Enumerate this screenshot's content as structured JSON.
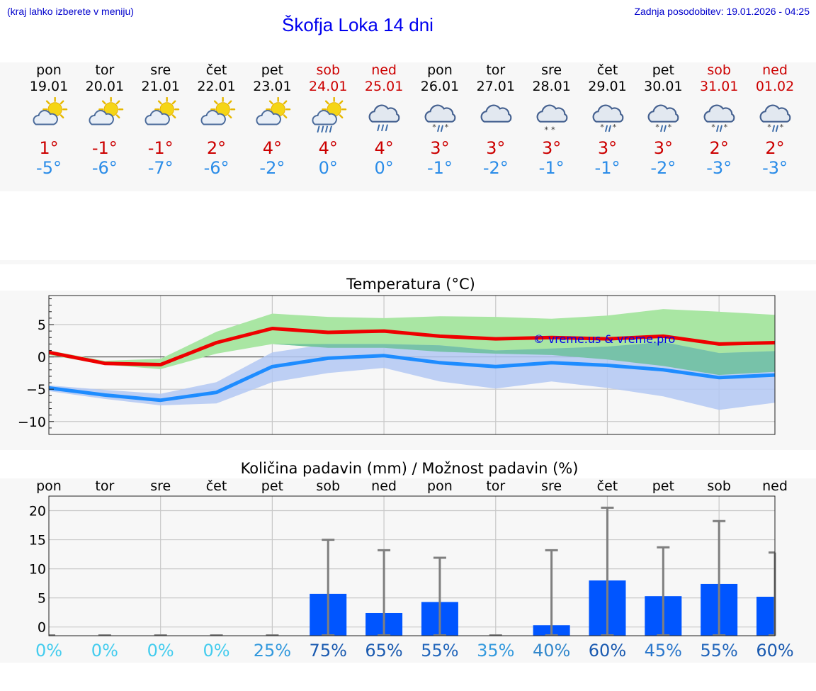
{
  "header": {
    "menu_hint": "(kraj lahko izberete v meniju)",
    "title": "Škofja Loka 14 dni",
    "last_update": "Zadnja posodobitev: 19.01.2026 - 04:25"
  },
  "days": [
    {
      "name": "pon",
      "date": "19.01",
      "weekend": false,
      "icon": "sun-cloud-icon",
      "max": "1°",
      "min": "-5°"
    },
    {
      "name": "tor",
      "date": "20.01",
      "weekend": false,
      "icon": "sun-cloud-icon",
      "max": "-1°",
      "min": "-6°"
    },
    {
      "name": "sre",
      "date": "21.01",
      "weekend": false,
      "icon": "sun-cloud-icon",
      "max": "-1°",
      "min": "-7°"
    },
    {
      "name": "čet",
      "date": "22.01",
      "weekend": false,
      "icon": "sun-cloud-icon",
      "max": "2°",
      "min": "-6°"
    },
    {
      "name": "pet",
      "date": "23.01",
      "weekend": false,
      "icon": "sun-cloud-icon",
      "max": "4°",
      "min": "-2°"
    },
    {
      "name": "sob",
      "date": "24.01",
      "weekend": true,
      "icon": "sun-cloud-rain-icon",
      "max": "4°",
      "min": "0°"
    },
    {
      "name": "ned",
      "date": "25.01",
      "weekend": true,
      "icon": "cloud-rain-icon",
      "max": "4°",
      "min": "0°"
    },
    {
      "name": "pon",
      "date": "26.01",
      "weekend": false,
      "icon": "cloud-sleet-icon",
      "max": "3°",
      "min": "-1°"
    },
    {
      "name": "tor",
      "date": "27.01",
      "weekend": false,
      "icon": "cloud-icon",
      "max": "3°",
      "min": "-2°"
    },
    {
      "name": "sre",
      "date": "28.01",
      "weekend": false,
      "icon": "cloud-snow-icon",
      "max": "3°",
      "min": "-1°"
    },
    {
      "name": "čet",
      "date": "29.01",
      "weekend": false,
      "icon": "cloud-sleet-icon",
      "max": "3°",
      "min": "-1°"
    },
    {
      "name": "pet",
      "date": "30.01",
      "weekend": false,
      "icon": "cloud-sleet-icon",
      "max": "3°",
      "min": "-2°"
    },
    {
      "name": "sob",
      "date": "31.01",
      "weekend": true,
      "icon": "cloud-sleet-icon",
      "max": "2°",
      "min": "-3°"
    },
    {
      "name": "ned",
      "date": "01.02",
      "weekend": true,
      "icon": "cloud-sleet-icon",
      "max": "2°",
      "min": "-3°"
    }
  ],
  "chart_data": [
    {
      "type": "line",
      "title": "Temperatura (°C)",
      "watermark": "© vreme.us & vreme.pro",
      "ylim": [
        -12,
        9.5
      ],
      "yticks": [
        5,
        0,
        -5,
        -10
      ],
      "ytick_labels": [
        "5",
        "0",
        "−5",
        "−10"
      ],
      "x": [
        0,
        1,
        2,
        3,
        4,
        5,
        6,
        7,
        8,
        9,
        10,
        11,
        12,
        13
      ],
      "series": [
        {
          "name": "max",
          "color": "#ee0000",
          "values": [
            0.7,
            -1.0,
            -1.2,
            2.2,
            4.4,
            3.8,
            4.0,
            3.2,
            2.8,
            3.0,
            2.8,
            3.2,
            2.0,
            2.2
          ]
        },
        {
          "name": "min",
          "color": "#1e8cff",
          "values": [
            -4.8,
            -5.9,
            -6.7,
            -5.5,
            -1.5,
            -0.2,
            0.2,
            -0.9,
            -1.5,
            -0.9,
            -1.3,
            -2.0,
            -3.2,
            -2.8
          ]
        }
      ],
      "bands": [
        {
          "name": "max-range",
          "color": "#a9e6a3",
          "low": [
            0.3,
            -1.2,
            -1.9,
            0.5,
            2.0,
            1.4,
            1.4,
            0.8,
            0.5,
            0.3,
            -0.4,
            -1.4,
            -2.8,
            -2.3
          ],
          "high": [
            1.0,
            -0.6,
            -0.3,
            3.9,
            6.7,
            6.2,
            6.0,
            6.3,
            6.2,
            5.9,
            6.4,
            7.4,
            7.0,
            6.5
          ]
        },
        {
          "name": "min-range",
          "color": "#b3c8f3",
          "low": [
            -5.3,
            -6.5,
            -7.5,
            -7.2,
            -3.9,
            -2.5,
            -1.7,
            -3.8,
            -4.9,
            -3.8,
            -4.8,
            -6.1,
            -8.2,
            -7.1
          ],
          "high": [
            -4.4,
            -5.1,
            -5.7,
            -3.9,
            0.7,
            2.0,
            2.0,
            1.8,
            1.0,
            1.3,
            1.6,
            2.3,
            0.6,
            0.9
          ]
        }
      ]
    },
    {
      "type": "bar",
      "title": "Količina padavin (mm) / Možnost padavin (%)",
      "categories": [
        "pon",
        "tor",
        "sre",
        "čet",
        "pet",
        "sob",
        "ned",
        "pon",
        "tor",
        "sre",
        "čet",
        "pet",
        "sob",
        "ned"
      ],
      "values": [
        0,
        0,
        0,
        0,
        0,
        5.7,
        2.4,
        4.3,
        0,
        0.3,
        8.0,
        5.3,
        7.4,
        5.2
      ],
      "error_max": [
        0,
        0,
        0,
        0,
        0,
        15,
        13.2,
        11.9,
        0,
        13.2,
        20.5,
        13.7,
        18.2,
        12.8
      ],
      "probability": [
        "0%",
        "0%",
        "0%",
        "0%",
        "25%",
        "75%",
        "65%",
        "55%",
        "35%",
        "40%",
        "60%",
        "45%",
        "55%",
        "60%"
      ],
      "prob_colors": [
        "#44ccee",
        "#44ccee",
        "#44ccee",
        "#44ccee",
        "#3399dd",
        "#1a5ab0",
        "#1a5ab0",
        "#2266bb",
        "#3399dd",
        "#3388cc",
        "#1a5ab0",
        "#2a77cc",
        "#2266bb",
        "#1a5ab0"
      ],
      "ylim": [
        -1.5,
        22.5
      ],
      "yticks": [
        20,
        15,
        10,
        5,
        0
      ],
      "ytick_labels": [
        "20",
        "15",
        "10",
        "5",
        "0"
      ]
    }
  ]
}
